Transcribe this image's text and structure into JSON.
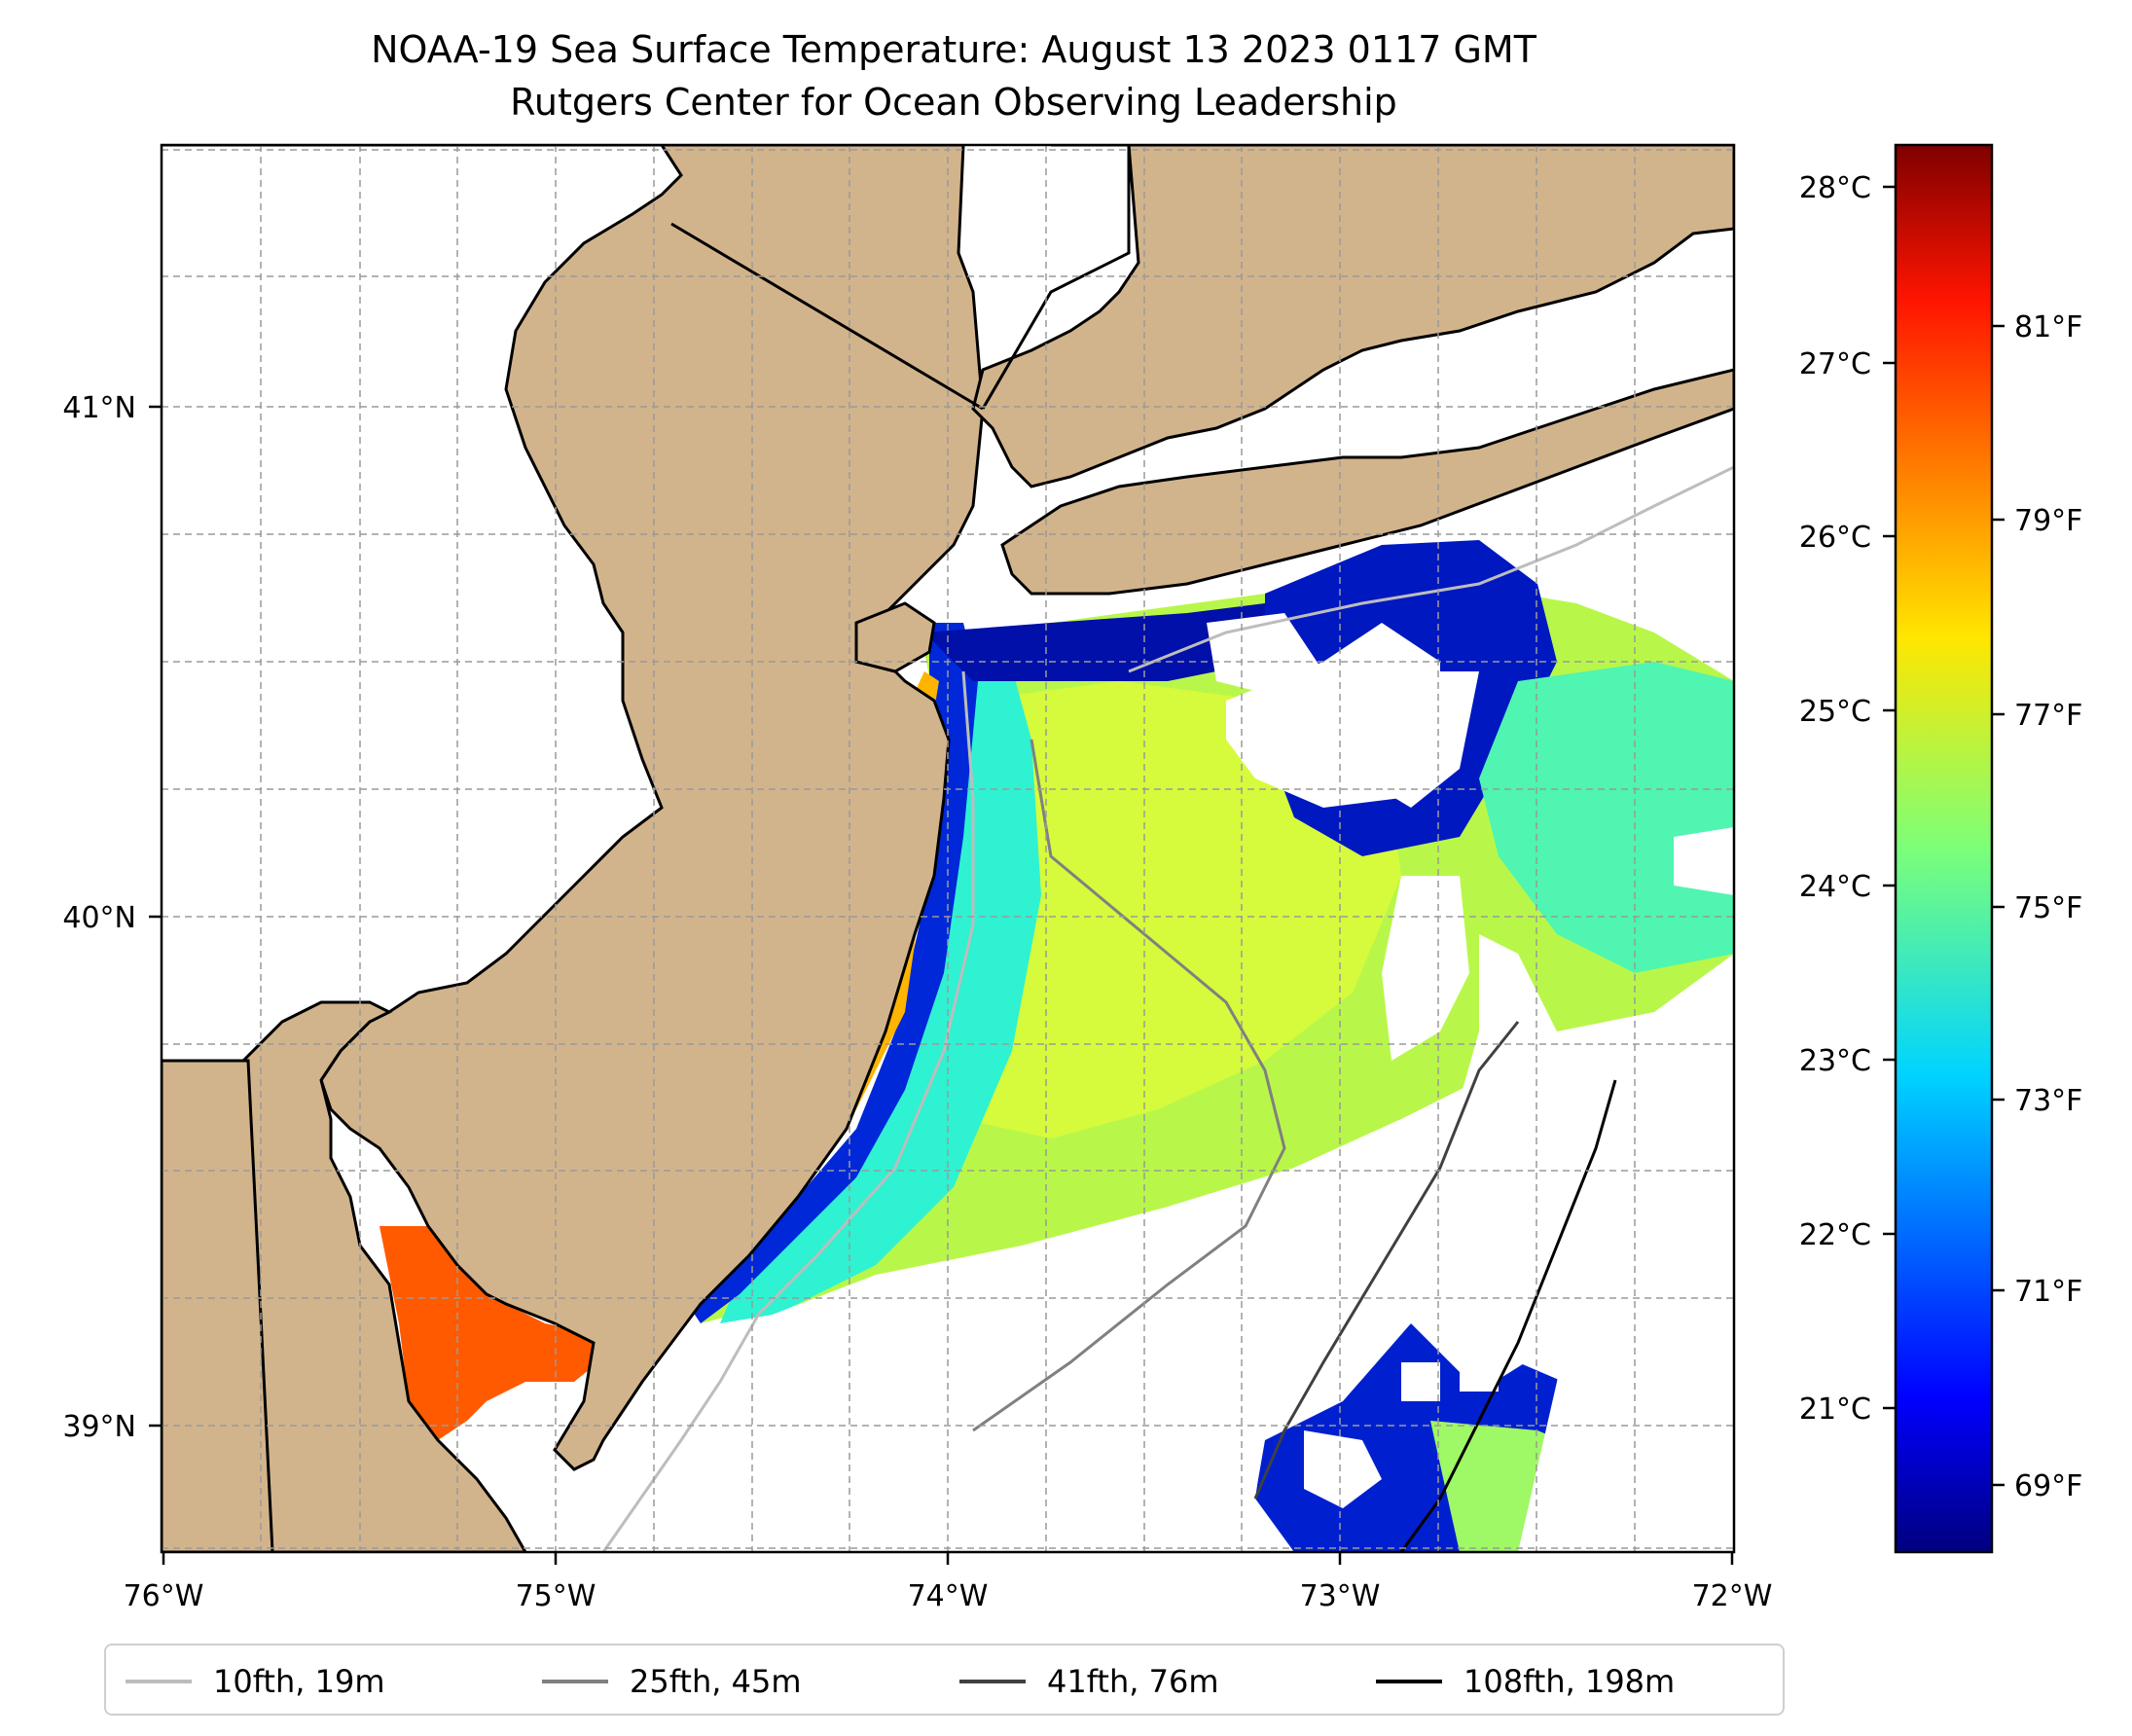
{
  "title": "NOAA-19 Sea Surface Temperature: August 13 2023 0117 GMT",
  "subtitle": "Rutgers Center for Ocean Observing Leadership",
  "map": {
    "lon_range": [
      -76,
      -72
    ],
    "lat_range": [
      38.72,
      41.52
    ],
    "lon_ticks": [
      "76°W",
      "75°W",
      "74°W",
      "73°W",
      "72°W"
    ],
    "lat_ticks": [
      "41°N",
      "40°N",
      "39°N"
    ],
    "gridlines": "on",
    "land_color": "#d2b48c",
    "no_data_color": "#ffffff"
  },
  "colorbar": {
    "colormap": "jet",
    "celsius_ticks": [
      "28°C",
      "27°C",
      "26°C",
      "25°C",
      "24°C",
      "23°C",
      "22°C",
      "21°C"
    ],
    "fahrenheit_ticks": [
      "81°F",
      "79°F",
      "77°F",
      "75°F",
      "73°F",
      "71°F",
      "69°F"
    ]
  },
  "legend": {
    "placement": "bottom",
    "items": [
      {
        "label": "10fth, 19m",
        "color": "#bdbdbd"
      },
      {
        "label": "25fth, 45m",
        "color": "#808080"
      },
      {
        "label": "41fth, 76m",
        "color": "#404040"
      },
      {
        "label": "108fth, 198m",
        "color": "#000000"
      }
    ]
  }
}
